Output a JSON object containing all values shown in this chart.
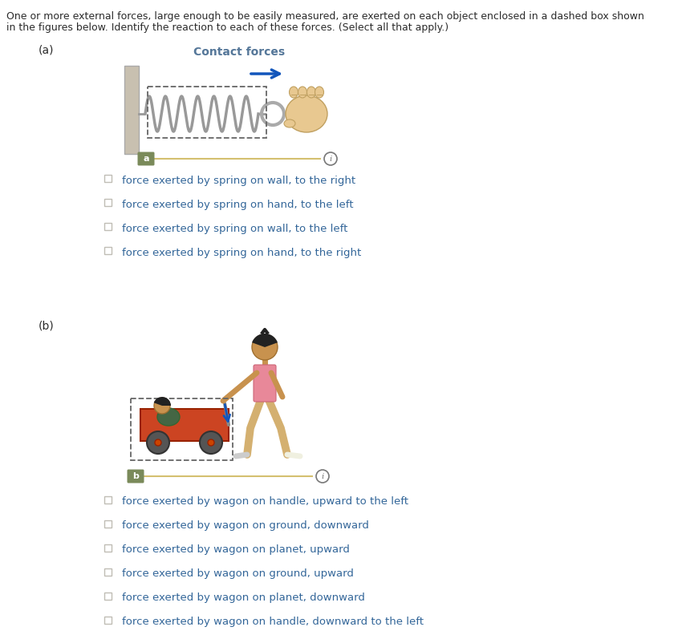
{
  "title_text_line1": "One or more external forces, large enough to be easily measured, are exerted on each object enclosed in a dashed box shown",
  "title_text_line2": "in the figures below. Identify the reaction to each of these forces. (Select all that apply.)",
  "section_a_label": "(a)",
  "section_a_subtitle": "Contact forces",
  "section_b_label": "(b)",
  "checkbox_color": "#c0bdb5",
  "text_color": "#2b2b2b",
  "option_text_color": "#336699",
  "label_bg_color": "#7a8a5a",
  "label_text_color": "#ffffff",
  "slider_line_color": "#d4c070",
  "info_circle_color": "#666666",
  "dashed_box_color": "#666666",
  "blue_arrow_color": "#1155bb",
  "spring_color": "#999999",
  "wall_color_face": "#c8c0b0",
  "wall_color_edge": "#aaaaaa",
  "hand_skin_color": "#e8c890",
  "hand_ring_color": "#bbbbbb",
  "wagon_body_color": "#cc4422",
  "wagon_wheel_color": "#555555",
  "wagon_handle_color": "#888888",
  "person_skin_color": "#c8924e",
  "person_shirt_color": "#e88899",
  "person_pants_color": "#d4b070",
  "person_hair_color": "#222222",
  "person_shoe_color_l": "#cccccc",
  "person_shoe_color_r": "#f0f0e0",
  "child_shirt_color": "#446644",
  "section_a_options": [
    "force exerted by spring on wall, to the right",
    "force exerted by spring on hand, to the left",
    "force exerted by spring on wall, to the left",
    "force exerted by spring on hand, to the right"
  ],
  "section_b_options": [
    "force exerted by wagon on handle, upward to the left",
    "force exerted by wagon on ground, downward",
    "force exerted by wagon on planet, upward",
    "force exerted by wagon on ground, upward",
    "force exerted by wagon on planet, downward",
    "force exerted by wagon on handle, downward to the left"
  ],
  "bg_color": "#ffffff",
  "title_fontsize": 9.0,
  "option_fontsize": 9.5,
  "section_label_fontsize": 10,
  "subtitle_fontsize": 10
}
